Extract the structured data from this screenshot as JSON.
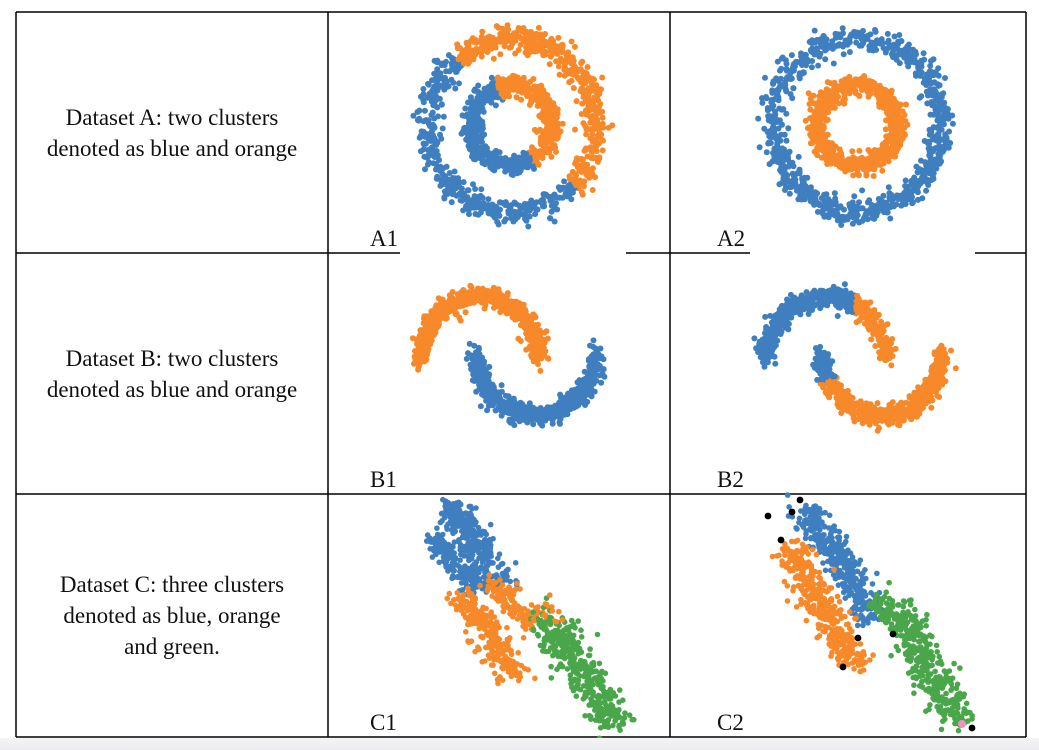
{
  "rows": [
    {
      "description": "Dataset A: two clusters\ndenoted as blue and orange",
      "panels": [
        {
          "label": "A1",
          "shape": "concentric-rings",
          "coloring": "mixed"
        },
        {
          "label": "A2",
          "shape": "concentric-rings",
          "coloring": "correct"
        }
      ]
    },
    {
      "description": "Dataset B: two clusters\ndenoted as blue and orange",
      "panels": [
        {
          "label": "B1",
          "shape": "two-moons",
          "coloring": "correct"
        },
        {
          "label": "B2",
          "shape": "two-moons",
          "coloring": "mixed"
        }
      ]
    },
    {
      "description": "Dataset C: three clusters\ndenoted as blue, orange\nand green.",
      "panels": [
        {
          "label": "C1",
          "shape": "diagonal-bands",
          "coloring": "split"
        },
        {
          "label": "C2",
          "shape": "diagonal-bands",
          "coloring": "with-outliers"
        }
      ]
    }
  ],
  "colors": {
    "blue": "#3f7fbf",
    "orange": "#f7892a",
    "green": "#4aa64a",
    "noise": "#000000",
    "pink": "#f08fc0",
    "border": "#000000"
  }
}
